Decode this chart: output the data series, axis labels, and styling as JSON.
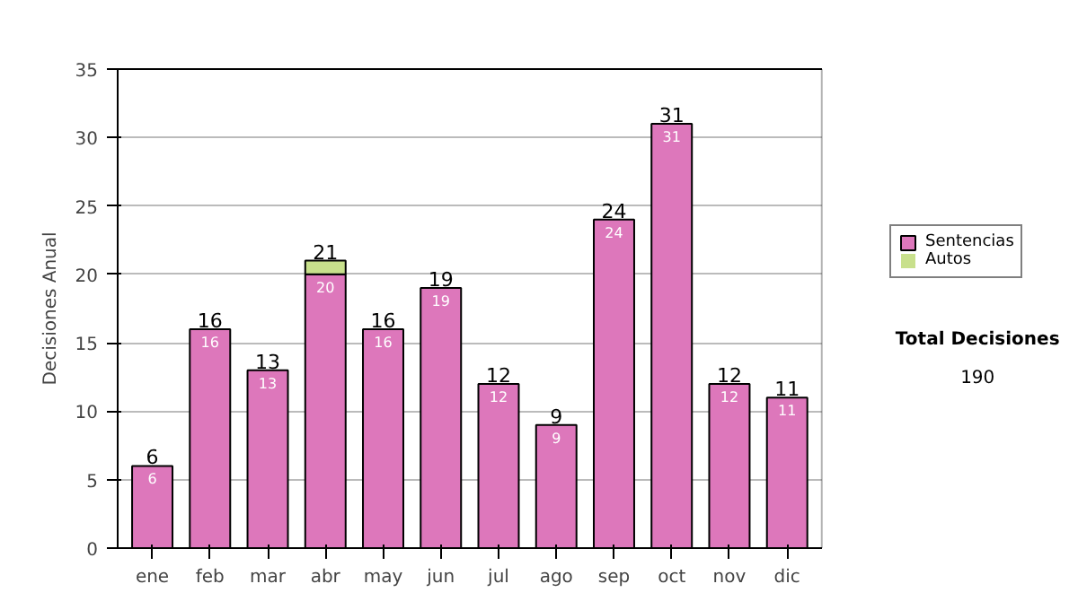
{
  "chart_data": {
    "type": "bar",
    "stacked": true,
    "ylabel": "Decisiones Anual",
    "categories": [
      "ene",
      "feb",
      "mar",
      "abr",
      "may",
      "jun",
      "jul",
      "ago",
      "sep",
      "oct",
      "nov",
      "dic"
    ],
    "series": [
      {
        "name": "Sentencias",
        "color": "#dd77bb",
        "values": [
          6,
          16,
          13,
          20,
          16,
          19,
          12,
          9,
          24,
          31,
          12,
          11
        ],
        "value_labels": [
          "6",
          "16",
          "13",
          "20",
          "16",
          "19",
          "12",
          "9",
          "24",
          "31",
          "12",
          "11"
        ]
      },
      {
        "name": "Autos",
        "color": "#c8e08c",
        "values": [
          0,
          0,
          0,
          1,
          0,
          0,
          0,
          0,
          0,
          0,
          0,
          0
        ]
      }
    ],
    "totals": [
      "6",
      "16",
      "13",
      "21",
      "16",
      "19",
      "12",
      "9",
      "24",
      "31",
      "12",
      "11"
    ],
    "ylim": [
      0,
      35
    ],
    "yticks": [
      0,
      5,
      10,
      15,
      20,
      25,
      30,
      35
    ],
    "grid": "y",
    "legend": "right",
    "annotations": [
      "Total Decisiones",
      "190"
    ]
  }
}
